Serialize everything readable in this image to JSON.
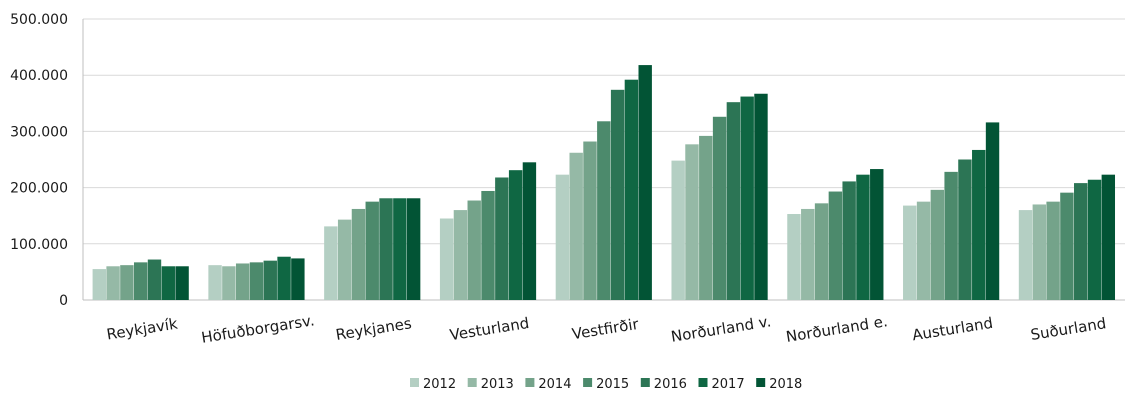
{
  "chart_data": {
    "type": "bar",
    "title": "",
    "xlabel": "",
    "ylabel": "",
    "ylim": [
      0,
      500000
    ],
    "yticks": [
      0,
      100000,
      200000,
      300000,
      400000,
      500000
    ],
    "ytick_labels": [
      "0",
      "100.000",
      "200.000",
      "300.000",
      "400.000",
      "500.000"
    ],
    "grid": true,
    "legend_position": "bottom",
    "categories": [
      "Reykjavík",
      "Höfuðborgarsv.",
      "Reykjanes",
      "Vesturland",
      "Vestfirðir",
      "Norðurland v.",
      "Norðurland e.",
      "Austurland",
      "Suðurland"
    ],
    "series": [
      {
        "name": "2012",
        "color": "#b4cfc3",
        "values": [
          55000,
          62000,
          131000,
          145000,
          223000,
          248000,
          153000,
          168000,
          160000
        ]
      },
      {
        "name": "2013",
        "color": "#95b9a6",
        "values": [
          60000,
          60000,
          143000,
          160000,
          262000,
          277000,
          162000,
          175000,
          170000
        ]
      },
      {
        "name": "2014",
        "color": "#74a38a",
        "values": [
          62000,
          65000,
          162000,
          177000,
          282000,
          292000,
          172000,
          196000,
          175000
        ]
      },
      {
        "name": "2015",
        "color": "#4c8a6c",
        "values": [
          67000,
          67000,
          175000,
          194000,
          318000,
          326000,
          193000,
          228000,
          191000
        ]
      },
      {
        "name": "2016",
        "color": "#2c7555",
        "values": [
          72000,
          70000,
          181000,
          218000,
          374000,
          352000,
          211000,
          250000,
          208000
        ]
      },
      {
        "name": "2017",
        "color": "#0f6743",
        "values": [
          60000,
          77000,
          181000,
          231000,
          392000,
          362000,
          223000,
          267000,
          214000
        ]
      },
      {
        "name": "2018",
        "color": "#025435",
        "values": [
          60000,
          74000,
          181000,
          245000,
          418000,
          367000,
          233000,
          316000,
          223000
        ]
      }
    ]
  }
}
